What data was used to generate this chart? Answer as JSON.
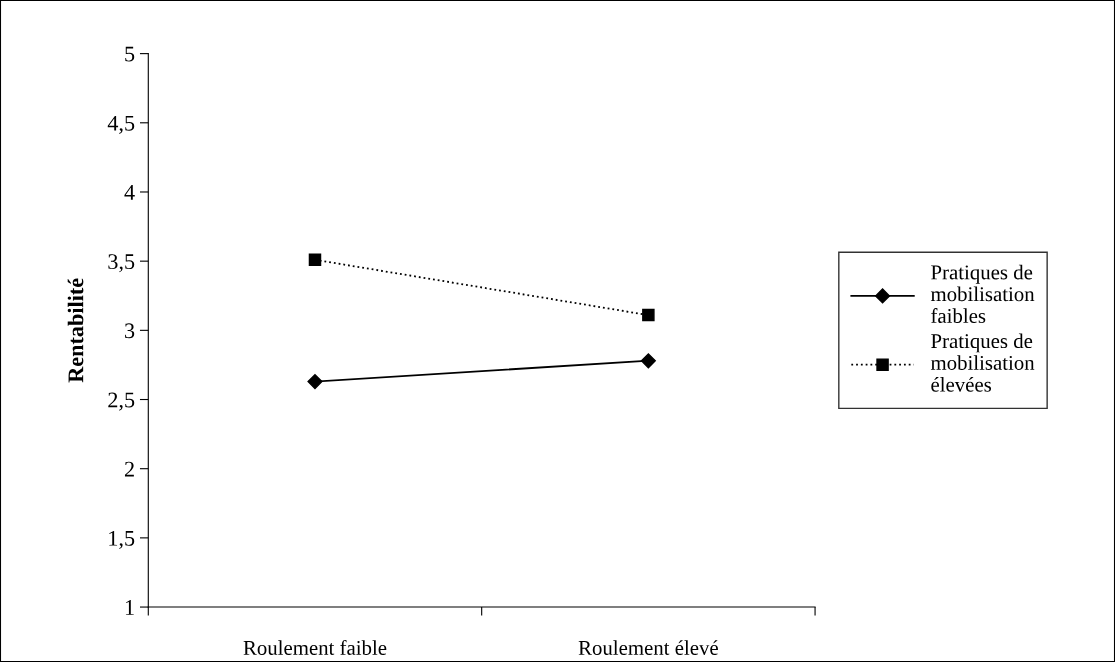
{
  "chart_data": {
    "type": "line",
    "ylabel": "Rentabilité",
    "categories": [
      "Roulement faible",
      "Roulement élevé"
    ],
    "series": [
      {
        "name": "Pratiques de mobilisation faibles",
        "color": "#000000",
        "values": [
          2.63,
          2.78
        ],
        "marker": "diamond",
        "line_style": "solid"
      },
      {
        "name": "Pratiques de mobilisation élevées",
        "color": "#000000",
        "values": [
          3.51,
          3.11
        ],
        "marker": "square",
        "line_style": "dotted"
      }
    ],
    "ylim": [
      1,
      5
    ],
    "yticks": [
      1,
      {
        "value": 1.5,
        "label": "1,5"
      },
      2,
      {
        "value": 2.5,
        "label": "2,5"
      },
      3,
      {
        "value": 3.5,
        "label": "3,5"
      },
      4,
      {
        "value": 4.5,
        "label": "4,5"
      },
      5
    ],
    "grid": false,
    "legend": "right"
  }
}
